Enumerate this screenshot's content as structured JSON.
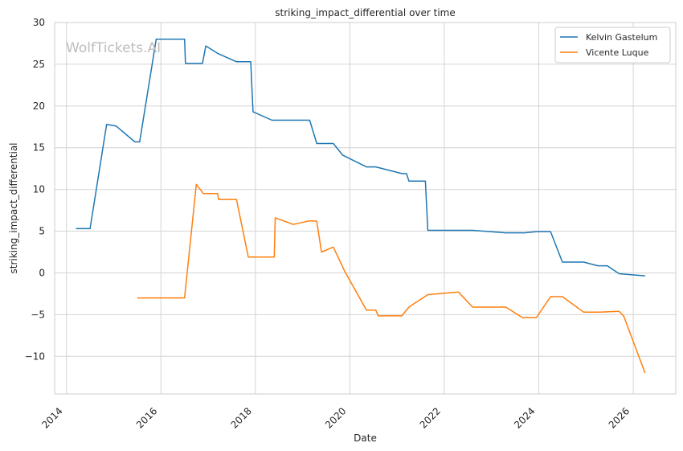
{
  "watermark": "WolfTickets.AI",
  "chart_data": {
    "type": "line",
    "title": "striking_impact_differential over time",
    "xlabel": "Date",
    "ylabel": "striking_impact_differential",
    "xlim": [
      2013.75,
      2026.9
    ],
    "ylim": [
      -14.5,
      30
    ],
    "x_ticks": [
      2014,
      2016,
      2018,
      2020,
      2022,
      2024,
      2026
    ],
    "y_ticks": [
      -10,
      -5,
      0,
      5,
      10,
      15,
      20,
      25,
      30
    ],
    "grid": true,
    "legend_position": "top-right",
    "series": [
      {
        "name": "Kelvin Gastelum",
        "color": "#1f77b4",
        "points": [
          [
            2014.2,
            5.3
          ],
          [
            2014.5,
            5.3
          ],
          [
            2014.85,
            17.8
          ],
          [
            2015.05,
            17.6
          ],
          [
            2015.45,
            15.7
          ],
          [
            2015.55,
            15.7
          ],
          [
            2015.9,
            28.0
          ],
          [
            2016.5,
            28.0
          ],
          [
            2016.52,
            25.1
          ],
          [
            2016.88,
            25.1
          ],
          [
            2016.95,
            27.2
          ],
          [
            2017.2,
            26.3
          ],
          [
            2017.6,
            25.3
          ],
          [
            2017.9,
            25.3
          ],
          [
            2017.95,
            19.3
          ],
          [
            2018.35,
            18.3
          ],
          [
            2019.15,
            18.3
          ],
          [
            2019.3,
            15.5
          ],
          [
            2019.65,
            15.5
          ],
          [
            2019.85,
            14.1
          ],
          [
            2020.35,
            12.7
          ],
          [
            2020.55,
            12.7
          ],
          [
            2021.1,
            11.9
          ],
          [
            2021.2,
            11.9
          ],
          [
            2021.25,
            11.0
          ],
          [
            2021.6,
            11.0
          ],
          [
            2021.65,
            5.1
          ],
          [
            2022.6,
            5.1
          ],
          [
            2023.3,
            4.8
          ],
          [
            2023.7,
            4.8
          ],
          [
            2023.95,
            4.95
          ],
          [
            2024.25,
            4.95
          ],
          [
            2024.5,
            1.3
          ],
          [
            2024.95,
            1.3
          ],
          [
            2025.25,
            0.85
          ],
          [
            2025.45,
            0.85
          ],
          [
            2025.7,
            -0.1
          ],
          [
            2026.25,
            -0.35
          ]
        ]
      },
      {
        "name": "Vicente Luque",
        "color": "#ff7f0e",
        "points": [
          [
            2015.5,
            -3.0
          ],
          [
            2016.5,
            -3.0
          ],
          [
            2016.75,
            10.6
          ],
          [
            2016.9,
            9.5
          ],
          [
            2017.2,
            9.5
          ],
          [
            2017.22,
            8.8
          ],
          [
            2017.6,
            8.8
          ],
          [
            2017.85,
            1.9
          ],
          [
            2018.4,
            1.9
          ],
          [
            2018.42,
            6.6
          ],
          [
            2018.8,
            5.8
          ],
          [
            2019.15,
            6.25
          ],
          [
            2019.3,
            6.2
          ],
          [
            2019.4,
            2.5
          ],
          [
            2019.65,
            3.1
          ],
          [
            2019.9,
            0.1
          ],
          [
            2020.35,
            -4.45
          ],
          [
            2020.55,
            -4.45
          ],
          [
            2020.6,
            -5.15
          ],
          [
            2021.1,
            -5.15
          ],
          [
            2021.25,
            -4.1
          ],
          [
            2021.65,
            -2.6
          ],
          [
            2022.3,
            -2.3
          ],
          [
            2022.6,
            -4.1
          ],
          [
            2023.3,
            -4.1
          ],
          [
            2023.65,
            -5.35
          ],
          [
            2023.95,
            -5.35
          ],
          [
            2024.25,
            -2.85
          ],
          [
            2024.5,
            -2.85
          ],
          [
            2024.95,
            -4.7
          ],
          [
            2025.3,
            -4.7
          ],
          [
            2025.7,
            -4.6
          ],
          [
            2025.8,
            -5.2
          ],
          [
            2026.25,
            -12.0
          ]
        ]
      }
    ]
  }
}
